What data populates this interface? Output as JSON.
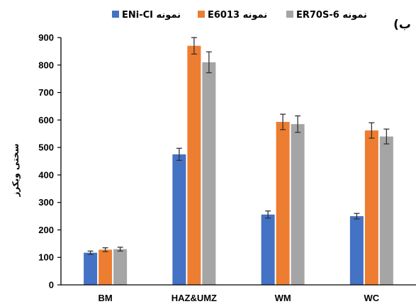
{
  "chart_data": {
    "type": "bar",
    "panel_label": "(ب",
    "ylabel": "سختی ویکرز",
    "xlabel": "",
    "ylim": [
      0,
      900
    ],
    "yticks": [
      0,
      100,
      200,
      300,
      400,
      500,
      600,
      700,
      800,
      900
    ],
    "categories": [
      "BM",
      "HAZ&UMZ",
      "WM",
      "WC"
    ],
    "legend_position": "top",
    "grid": false,
    "series": [
      {
        "name": "نمونه ENi-CI",
        "color": "#4472C4",
        "values": [
          117,
          475,
          256,
          250
        ],
        "errors": [
          6,
          22,
          13,
          10
        ]
      },
      {
        "name": "نمونه E6013",
        "color": "#ED7D31",
        "values": [
          128,
          870,
          593,
          562
        ],
        "errors": [
          7,
          30,
          28,
          28
        ]
      },
      {
        "name": "نمونه ER70S-6",
        "color": "#A5A5A5",
        "values": [
          130,
          810,
          585,
          540
        ],
        "errors": [
          7,
          38,
          30,
          27
        ]
      }
    ]
  }
}
